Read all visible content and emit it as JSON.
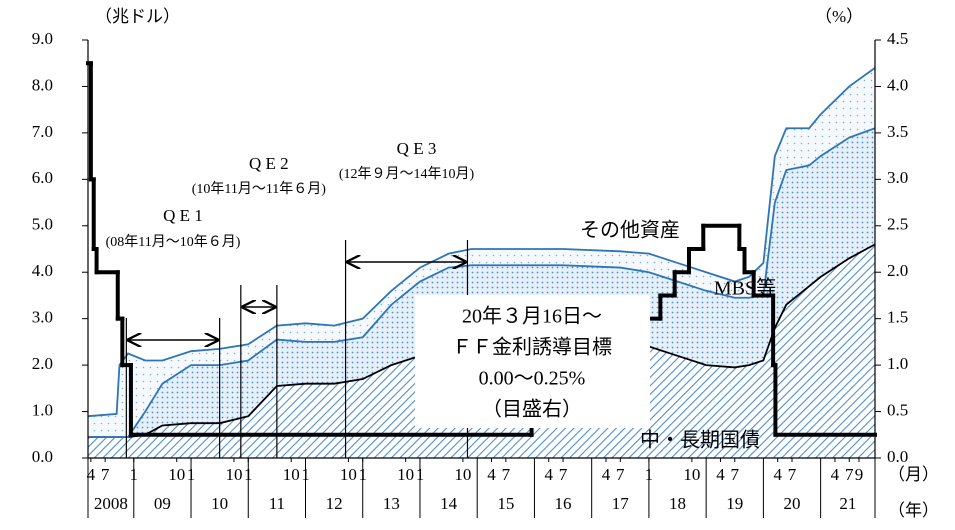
{
  "chart_data": {
    "type": "area",
    "stacked": true,
    "ylabel": "（兆ドル）",
    "y2label": "（%）",
    "month_unit": "（月）",
    "year_unit": "（年）",
    "xlim": [
      2008.2,
      2021.95
    ],
    "ylim": [
      0,
      9
    ],
    "yticks": [
      {
        "value": 0,
        "label": "0.0"
      },
      {
        "value": 1,
        "label": "1.0"
      },
      {
        "value": 2,
        "label": "2.0"
      },
      {
        "value": 3,
        "label": "3.0"
      },
      {
        "value": 4,
        "label": "4.0"
      },
      {
        "value": 5,
        "label": "5.0"
      },
      {
        "value": 6,
        "label": "6.0"
      },
      {
        "value": 7,
        "label": "7.0"
      },
      {
        "value": 8,
        "label": "8.0"
      },
      {
        "value": 9,
        "label": "9.0"
      }
    ],
    "y2lim": [
      0,
      4.5
    ],
    "y2ticks": [
      {
        "value": 0,
        "label": "0.0"
      },
      {
        "value": 0.5,
        "label": "0.5"
      },
      {
        "value": 1,
        "label": "1.0"
      },
      {
        "value": 1.5,
        "label": "1.5"
      },
      {
        "value": 2,
        "label": "2.0"
      },
      {
        "value": 2.5,
        "label": "2.5"
      },
      {
        "value": 3,
        "label": "3.0"
      },
      {
        "value": 3.5,
        "label": "3.5"
      },
      {
        "value": 4,
        "label": "4.0"
      },
      {
        "value": 4.5,
        "label": "4.5"
      }
    ],
    "xticks": [
      {
        "value": 2008.25,
        "label": "4"
      },
      {
        "value": 2008.5,
        "label": "7"
      },
      {
        "value": 2009.0,
        "label": "1"
      },
      {
        "value": 2009.75,
        "label": "10"
      },
      {
        "value": 2010.0,
        "label": "1"
      },
      {
        "value": 2010.75,
        "label": "10"
      },
      {
        "value": 2011.0,
        "label": "1"
      },
      {
        "value": 2011.75,
        "label": "10"
      },
      {
        "value": 2012.0,
        "label": "1"
      },
      {
        "value": 2012.75,
        "label": "10"
      },
      {
        "value": 2013.0,
        "label": "1"
      },
      {
        "value": 2013.75,
        "label": "10"
      },
      {
        "value": 2014.0,
        "label": "1"
      },
      {
        "value": 2014.75,
        "label": "10"
      },
      {
        "value": 2015.25,
        "label": "4"
      },
      {
        "value": 2015.5,
        "label": "7"
      },
      {
        "value": 2016.25,
        "label": "4"
      },
      {
        "value": 2016.5,
        "label": "7"
      },
      {
        "value": 2017.25,
        "label": "4"
      },
      {
        "value": 2017.5,
        "label": "7"
      },
      {
        "value": 2018.0,
        "label": "1"
      },
      {
        "value": 2018.75,
        "label": "10"
      },
      {
        "value": 2019.25,
        "label": "4"
      },
      {
        "value": 2019.5,
        "label": "7"
      },
      {
        "value": 2020.25,
        "label": "4"
      },
      {
        "value": 2020.5,
        "label": "7"
      },
      {
        "value": 2021.25,
        "label": "4"
      },
      {
        "value": 2021.5,
        "label": "7"
      },
      {
        "value": 2021.67,
        "label": "9"
      }
    ],
    "year_ticks": [
      {
        "value": 2008,
        "label": "2008"
      },
      {
        "value": 2009,
        "label": "09"
      },
      {
        "value": 2010,
        "label": "10"
      },
      {
        "value": 2011,
        "label": "11"
      },
      {
        "value": 2012,
        "label": "12"
      },
      {
        "value": 2013,
        "label": "13"
      },
      {
        "value": 2014,
        "label": "14"
      },
      {
        "value": 2015,
        "label": "15"
      },
      {
        "value": 2016,
        "label": "16"
      },
      {
        "value": 2017,
        "label": "17"
      },
      {
        "value": 2018,
        "label": "18"
      },
      {
        "value": 2019,
        "label": "19"
      },
      {
        "value": 2020,
        "label": "20"
      },
      {
        "value": 2021,
        "label": "21"
      }
    ],
    "x": [
      2008.2,
      2008.7,
      2008.75,
      2008.9,
      2009.2,
      2009.5,
      2010.0,
      2010.5,
      2011.0,
      2011.5,
      2012.0,
      2012.5,
      2013.0,
      2013.5,
      2014.0,
      2014.5,
      2014.9,
      2015.5,
      2016.5,
      2017.5,
      2018.0,
      2018.5,
      2019.0,
      2019.5,
      2019.75,
      2020.0,
      2020.2,
      2020.4,
      2020.8,
      2021.0,
      2021.5,
      2021.95
    ],
    "series": [
      {
        "name": "中・長期国債",
        "color": "#000000",
        "fill": "hatch",
        "values": [
          0.45,
          0.45,
          0.45,
          0.45,
          0.5,
          0.7,
          0.75,
          0.75,
          0.9,
          1.55,
          1.6,
          1.6,
          1.7,
          2.0,
          2.2,
          2.4,
          2.45,
          2.45,
          2.45,
          2.45,
          2.4,
          2.2,
          2.0,
          1.95,
          2.0,
          2.1,
          2.8,
          3.3,
          3.7,
          3.9,
          4.3,
          4.6
        ]
      },
      {
        "name": "MBS等",
        "color": "#2e75b6",
        "fill": "dots-dense",
        "values": [
          0,
          0,
          0,
          0,
          0.5,
          0.9,
          1.25,
          1.25,
          1.2,
          1.0,
          0.9,
          0.9,
          0.9,
          1.3,
          1.6,
          1.7,
          1.7,
          1.7,
          1.7,
          1.65,
          1.6,
          1.6,
          1.6,
          1.5,
          1.45,
          1.4,
          2.7,
          2.9,
          2.6,
          2.6,
          2.6,
          2.5
        ]
      },
      {
        "name": "その他資産",
        "color": "#2e75b6",
        "fill": "dots-sparse",
        "values": [
          0.45,
          0.5,
          1.55,
          1.8,
          1.1,
          0.5,
          0.3,
          0.35,
          0.35,
          0.3,
          0.4,
          0.35,
          0.4,
          0.3,
          0.3,
          0.3,
          0.35,
          0.35,
          0.35,
          0.35,
          0.4,
          0.4,
          0.4,
          0.35,
          0.45,
          0.7,
          1.0,
          0.9,
          0.8,
          0.9,
          1.1,
          1.3
        ]
      }
    ],
    "rate": {
      "axis": "y2",
      "color": "#000000",
      "step": true,
      "x": [
        2008.2,
        2008.25,
        2008.3,
        2008.35,
        2008.72,
        2008.8,
        2008.95,
        2015.95,
        2016.95,
        2017.2,
        2017.45,
        2017.95,
        2018.2,
        2018.45,
        2018.7,
        2018.95,
        2019.58,
        2019.67,
        2019.83,
        2020.17,
        2020.21
      ],
      "values": [
        4.25,
        3.0,
        2.25,
        2.0,
        1.5,
        1.0,
        0.25,
        0.5,
        0.75,
        1.0,
        1.25,
        1.5,
        1.75,
        2.0,
        2.25,
        2.5,
        2.25,
        2.0,
        1.75,
        1.0,
        0.25
      ]
    },
    "annotations": [
      {
        "label": "Q E 1",
        "period": "(08年11月～10年６月)",
        "start": 2008.87,
        "end": 2010.5
      },
      {
        "label": "Q E 2",
        "period": "(10年11月～11年６月)",
        "start": 2010.87,
        "end": 2011.5
      },
      {
        "label": "Q E 3",
        "period": "(12年９月～14年10月)",
        "start": 2012.7,
        "end": 2014.83
      }
    ],
    "note": [
      "20年３月16日～",
      "ＦＦ金利誘導目標",
      "0.00～0.25%",
      "（目盛右）"
    ]
  }
}
